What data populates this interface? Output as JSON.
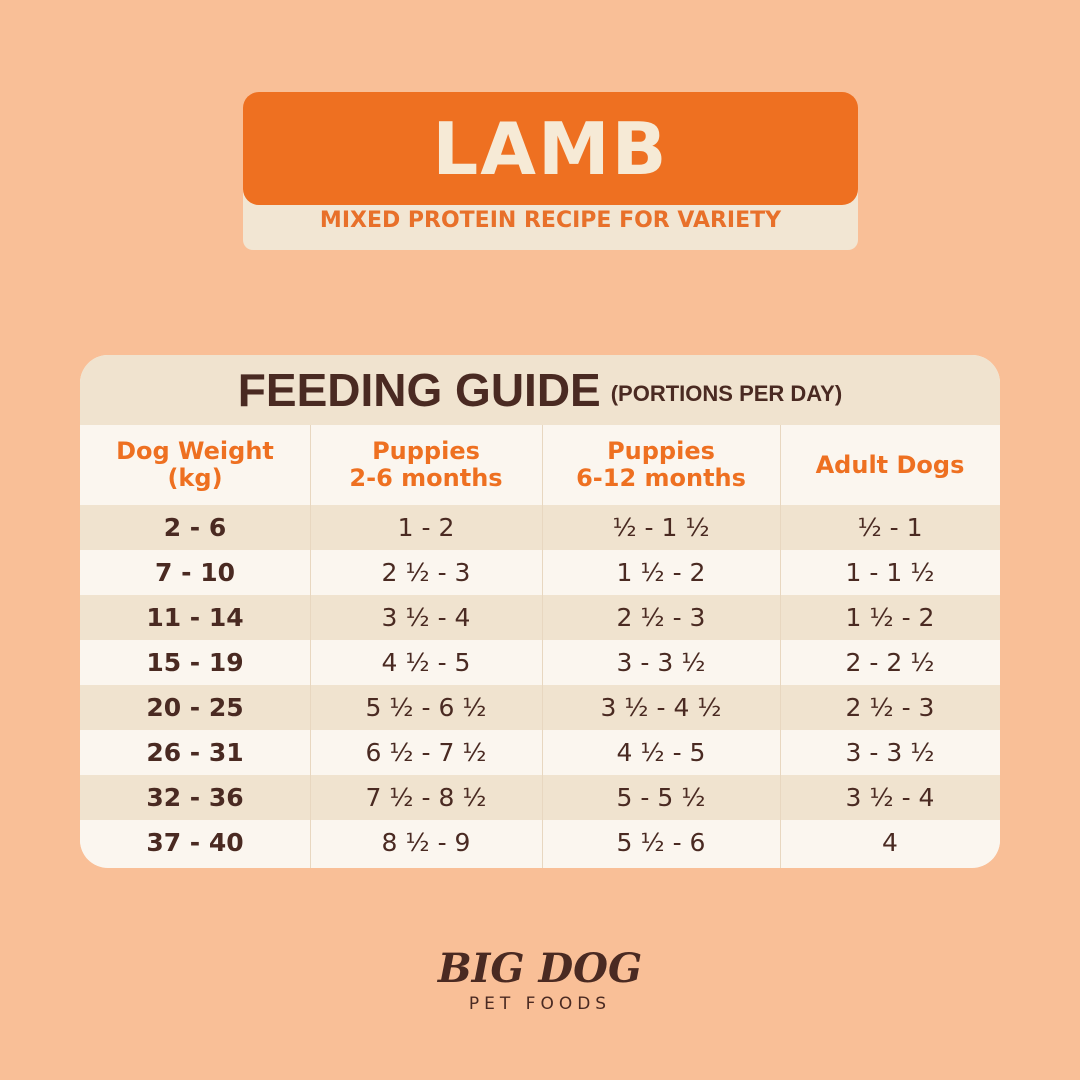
{
  "header": {
    "title": "LAMB",
    "subtitle": "MIXED PROTEIN RECIPE FOR VARIETY"
  },
  "table": {
    "title": "FEEDING GUIDE",
    "subtitle": "(PORTIONS PER DAY)",
    "columns": [
      [
        "Dog Weight",
        "(kg)"
      ],
      [
        "Puppies",
        "2-6 months"
      ],
      [
        "Puppies",
        "6-12 months"
      ],
      [
        "Adult Dogs"
      ]
    ],
    "rows": [
      [
        "2 - 6",
        "1 - 2",
        "½ - 1 ½",
        "½ - 1"
      ],
      [
        "7 - 10",
        "2 ½ - 3",
        "1 ½ - 2",
        "1 - 1 ½"
      ],
      [
        "11 - 14",
        "3 ½ - 4",
        "2 ½ - 3",
        "1 ½ - 2"
      ],
      [
        "15 - 19",
        "4 ½ - 5",
        "3 - 3 ½",
        "2 - 2 ½"
      ],
      [
        "20 - 25",
        "5 ½ - 6 ½",
        "3 ½ - 4 ½",
        "2 ½ - 3"
      ],
      [
        "26 - 31",
        "6 ½ - 7 ½",
        "4 ½ - 5",
        "3 - 3 ½"
      ],
      [
        "32 - 36",
        "7 ½ - 8 ½",
        "5 - 5 ½",
        "3 ½ - 4"
      ],
      [
        "37 - 40",
        "8 ½ - 9",
        "5 ½ - 6",
        "4"
      ]
    ]
  },
  "footer": {
    "brand": "BIG DOG",
    "tagline": "PET FOODS"
  }
}
